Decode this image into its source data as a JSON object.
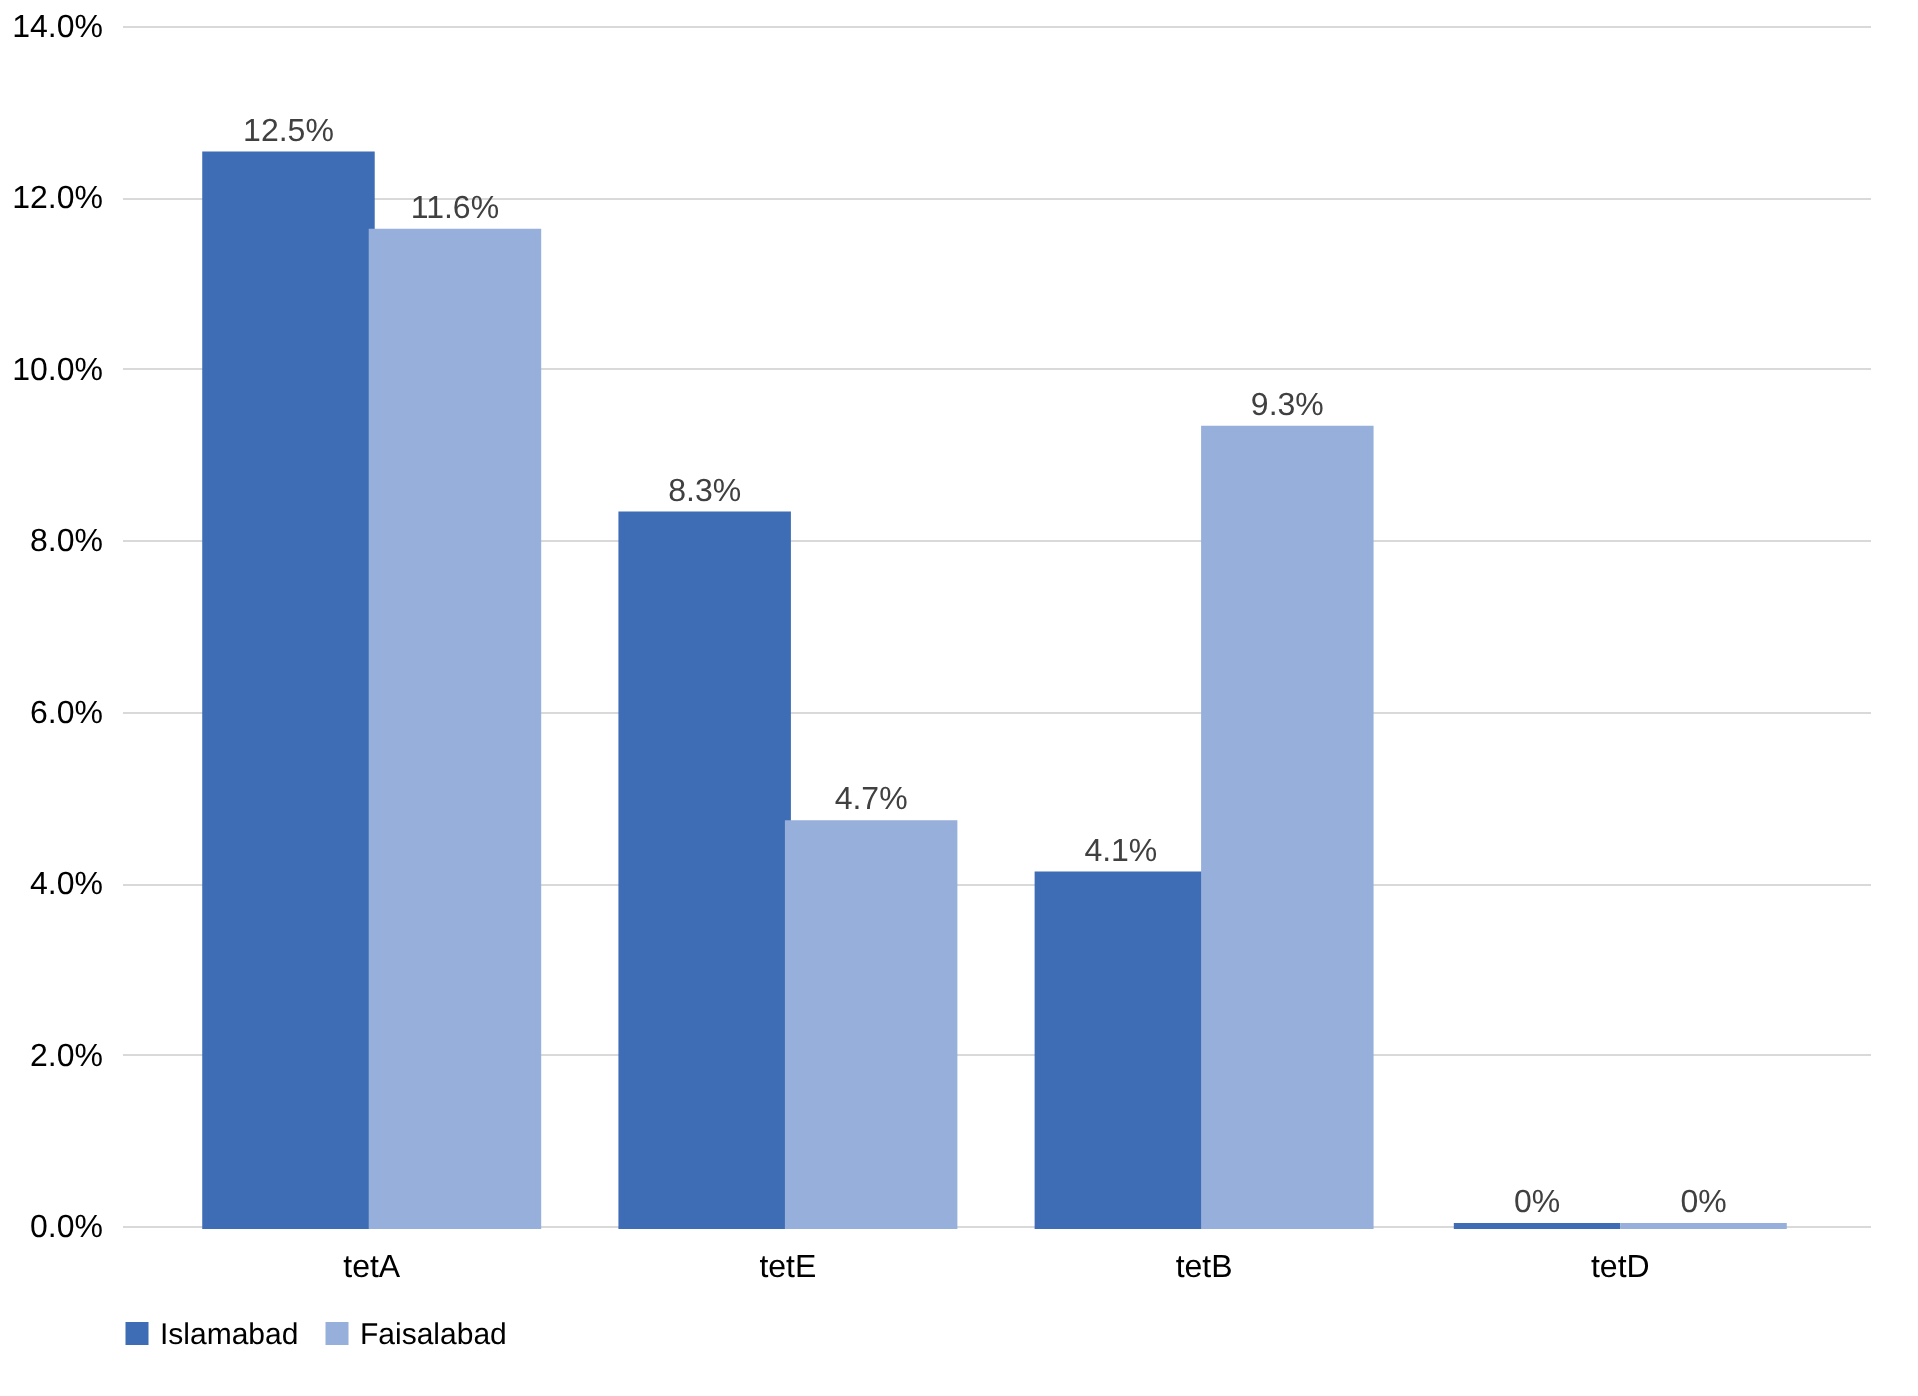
{
  "chart_data": {
    "type": "bar",
    "categories": [
      "tetA",
      "tetE",
      "tetB",
      "tetD"
    ],
    "series": [
      {
        "name": "Islamabad",
        "color": "#3e6db5",
        "values": [
          12.5,
          8.3,
          4.1,
          0
        ],
        "value_labels": [
          "12.5%",
          "8.3%",
          "4.1%",
          "0%"
        ]
      },
      {
        "name": "Faisalabad",
        "color": "#97afdb",
        "values": [
          11.6,
          4.7,
          9.3,
          0
        ],
        "value_labels": [
          "11.6%",
          "4.7%",
          "9.3%",
          "0%"
        ]
      }
    ],
    "ylim": [
      0,
      14
    ],
    "yticks": [
      {
        "value": 0,
        "label": "0.0%"
      },
      {
        "value": 2,
        "label": "2.0%"
      },
      {
        "value": 4,
        "label": "4.0%"
      },
      {
        "value": 6,
        "label": "6.0%"
      },
      {
        "value": 8,
        "label": "8.0%"
      },
      {
        "value": 10,
        "label": "10.0%"
      },
      {
        "value": 12,
        "label": "12.0%"
      },
      {
        "value": 14,
        "label": "14.0%"
      }
    ],
    "grid": "y",
    "legend": "bottom"
  }
}
